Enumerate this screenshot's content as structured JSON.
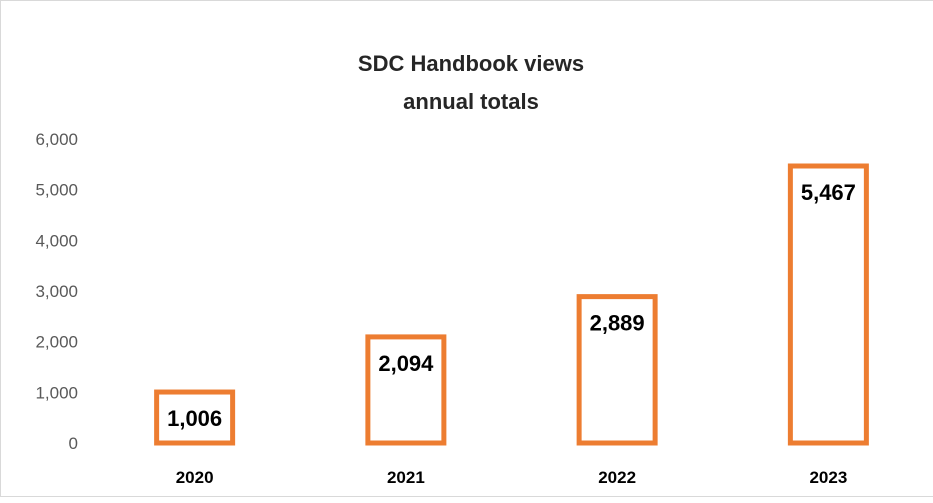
{
  "chart_data": {
    "type": "bar",
    "title": "SDC Handbook views",
    "subtitle": "annual totals",
    "categories": [
      "2020",
      "2021",
      "2022",
      "2023"
    ],
    "values": [
      1006,
      2094,
      2889,
      5467
    ],
    "data_labels": [
      "1,006",
      "2,094",
      "2,889",
      "5,467"
    ],
    "yticks": [
      "0",
      "1,000",
      "2,000",
      "3,000",
      "4,000",
      "5,000",
      "6,000"
    ],
    "ylim": [
      0,
      6000
    ],
    "ystep": 1000,
    "xlabel": "",
    "ylabel": "",
    "grid": false,
    "legend": "none",
    "bar_fill": "#ffffff",
    "bar_outline": "#ed7d31"
  }
}
